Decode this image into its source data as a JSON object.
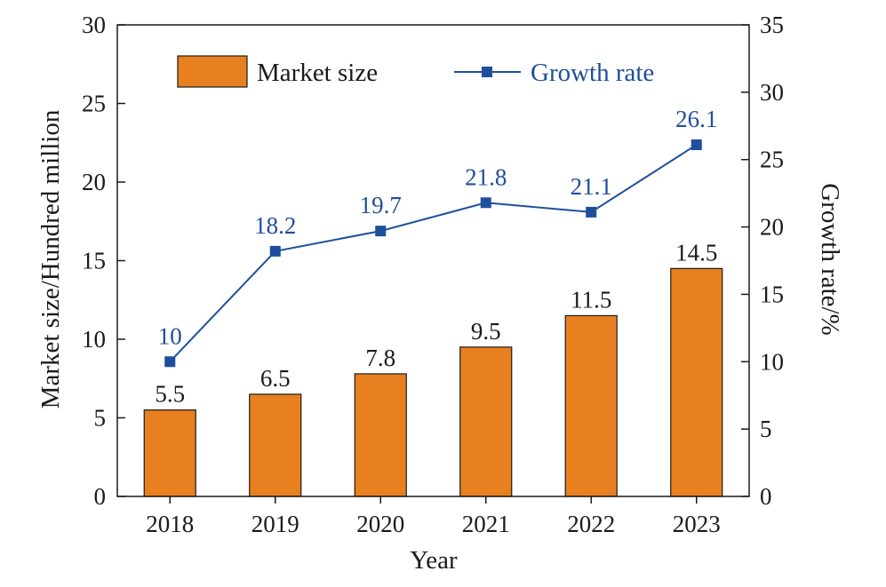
{
  "chart_data": {
    "type": "bar",
    "title": "",
    "xlabel": "Year",
    "ylabel": "Market size/Hundred million",
    "ylabel_right": "Growth rate/%",
    "categories": [
      "2018",
      "2019",
      "2020",
      "2021",
      "2022",
      "2023"
    ],
    "ylim": [
      0,
      30
    ],
    "yticks": [
      0,
      5,
      10,
      15,
      20,
      25,
      30
    ],
    "ylim_right": [
      0,
      35
    ],
    "yticks_right": [
      0,
      5,
      10,
      15,
      20,
      25,
      30,
      35
    ],
    "grid": false,
    "legend_position": "top",
    "series": [
      {
        "name": "Market size",
        "type": "bar",
        "axis": "left",
        "color": "#E8801F",
        "values": [
          5.5,
          6.5,
          7.8,
          9.5,
          11.5,
          14.5
        ],
        "labels": [
          "5.5",
          "6.5",
          "7.8",
          "9.5",
          "11.5",
          "14.5"
        ]
      },
      {
        "name": "Growth rate",
        "type": "line",
        "axis": "right",
        "color": "#1F4E9C",
        "marker": "square",
        "values": [
          10,
          18.2,
          19.7,
          21.8,
          21.1,
          26.1
        ],
        "labels": [
          "10",
          "18.2",
          "19.7",
          "21.8",
          "21.1",
          "26.1"
        ]
      }
    ]
  }
}
